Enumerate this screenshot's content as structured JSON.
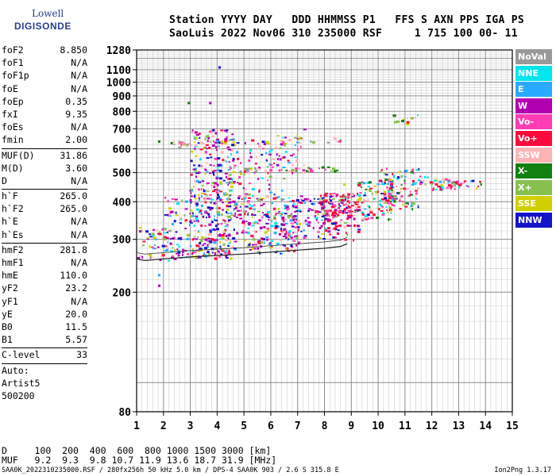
{
  "logo": {
    "line1": "Lowell",
    "line2": "DIGISONDE"
  },
  "header": {
    "line1": "Station YYYY DAY   DDD HHMMSS P1   FFS S AXN PPS IGA PS",
    "line2": "SaoLuis 2022 Nov06 310 235000 RSF     1 715 100 00- 11"
  },
  "params": [
    {
      "type": "row",
      "name": "foF2",
      "value": "8.850"
    },
    {
      "type": "row",
      "name": "foF1",
      "value": "N/A"
    },
    {
      "type": "row",
      "name": "foF1p",
      "value": "N/A"
    },
    {
      "type": "row",
      "name": "foE",
      "value": "N/A"
    },
    {
      "type": "row",
      "name": "foEp",
      "value": "0.35"
    },
    {
      "type": "row",
      "name": "fxI",
      "value": "9.35"
    },
    {
      "type": "row",
      "name": "foEs",
      "value": "N/A"
    },
    {
      "type": "row",
      "name": "fmin",
      "value": "2.00"
    },
    {
      "type": "sep"
    },
    {
      "type": "row",
      "name": "MUF(D)",
      "value": "31.86"
    },
    {
      "type": "row",
      "name": "M(D)",
      "value": "3.60"
    },
    {
      "type": "row",
      "name": "D",
      "value": "N/A"
    },
    {
      "type": "sep"
    },
    {
      "type": "row",
      "name": "h`F",
      "value": "265.0"
    },
    {
      "type": "row",
      "name": "h`F2",
      "value": "265.0"
    },
    {
      "type": "row",
      "name": "h`E",
      "value": "N/A"
    },
    {
      "type": "row",
      "name": "h`Es",
      "value": "N/A"
    },
    {
      "type": "sep"
    },
    {
      "type": "row",
      "name": "hmF2",
      "value": "281.8"
    },
    {
      "type": "row",
      "name": "hmF1",
      "value": "N/A"
    },
    {
      "type": "row",
      "name": "hmE",
      "value": "110.0"
    },
    {
      "type": "row",
      "name": "yF2",
      "value": "23.2"
    },
    {
      "type": "row",
      "name": "yF1",
      "value": "N/A"
    },
    {
      "type": "row",
      "name": "yE",
      "value": "20.0"
    },
    {
      "type": "row",
      "name": "B0",
      "value": "11.5"
    },
    {
      "type": "row",
      "name": "B1",
      "value": "5.57"
    },
    {
      "type": "sep"
    },
    {
      "type": "row",
      "name": "C-level",
      "value": "33"
    },
    {
      "type": "sep"
    },
    {
      "type": "text",
      "name": "Auto:"
    },
    {
      "type": "text",
      "name": "Artist5"
    },
    {
      "type": "text",
      "name": "500200"
    }
  ],
  "legend": [
    {
      "label": "NoVal",
      "color": "#999999"
    },
    {
      "label": "NNE",
      "color": "#00e5ee"
    },
    {
      "label": "E",
      "color": "#29aaff"
    },
    {
      "label": "W",
      "color": "#b000b0"
    },
    {
      "label": "Vo-",
      "color": "#ff3cb4"
    },
    {
      "label": "Vo+",
      "color": "#ff0a3c"
    },
    {
      "label": "SSW",
      "color": "#ffb4b4"
    },
    {
      "label": "X-",
      "color": "#108010"
    },
    {
      "label": "X+",
      "color": "#88c050"
    },
    {
      "label": "SSE",
      "color": "#d0d000"
    },
    {
      "label": "NNW",
      "color": "#1414c8"
    }
  ],
  "muf_table": {
    "row1": "D     100  200  400  600  800 1000 1500 3000 [km]",
    "row2": "MUF   9.2  9.3  9.8 10.7 11.9 13.6 18.7 31.9 [MHz]"
  },
  "footer": {
    "left": "SAA0K_2022310235000.RSF / 280fx256h 50 kHz 5.0 km / DPS-4 SAA0K 903 / 2.6 S 315.8 E",
    "right": "Ion2Png 1.3.17"
  },
  "chart_data": {
    "type": "scatter",
    "xlim": [
      1,
      15
    ],
    "ylim": [
      80,
      1280
    ],
    "yscale": "log",
    "x_ticks": [
      1,
      2,
      3,
      4,
      5,
      6,
      7,
      8,
      9,
      10,
      11,
      12,
      13,
      14,
      15
    ],
    "y_ticks": [
      80,
      200,
      300,
      400,
      500,
      600,
      700,
      800,
      900,
      1000,
      1100,
      1280
    ],
    "grid": true,
    "clusters": [
      {
        "f": [
          1.0,
          2.9
        ],
        "h": [
          255,
          330
        ],
        "n": 90,
        "mix": "main"
      },
      {
        "f": [
          2.0,
          3.0
        ],
        "h": [
          340,
          420
        ],
        "n": 25,
        "mix": "main"
      },
      {
        "f": [
          2.95,
          4.5
        ],
        "h": [
          260,
          450
        ],
        "n": 260,
        "mix": "main"
      },
      {
        "f": [
          3.0,
          4.6
        ],
        "h": [
          450,
          700
        ],
        "n": 160,
        "mix": "main"
      },
      {
        "f": [
          4.5,
          7.0
        ],
        "h": [
          270,
          420
        ],
        "n": 230,
        "mix": "main"
      },
      {
        "f": [
          4.6,
          6.5
        ],
        "h": [
          420,
          650
        ],
        "n": 70,
        "mix": "main"
      },
      {
        "f": [
          5.8,
          7.4
        ],
        "h": [
          500,
          700
        ],
        "n": 40,
        "mix": "main"
      },
      {
        "f": [
          6.0,
          8.0
        ],
        "h": [
          300,
          420
        ],
        "n": 110,
        "mix": "main"
      },
      {
        "f": [
          7.8,
          9.2
        ],
        "h": [
          360,
          430
        ],
        "n": 120,
        "mix": "red"
      },
      {
        "f": [
          8.0,
          9.5
        ],
        "h": [
          300,
          380
        ],
        "n": 60,
        "mix": "red"
      },
      {
        "f": [
          9.2,
          10.5
        ],
        "h": [
          350,
          470
        ],
        "n": 90,
        "mix": "late"
      },
      {
        "f": [
          10.0,
          11.5
        ],
        "h": [
          380,
          520
        ],
        "n": 130,
        "mix": "late"
      },
      {
        "f": [
          11.5,
          12.5
        ],
        "h": [
          440,
          490
        ],
        "n": 30,
        "mix": "late"
      },
      {
        "f": [
          12.5,
          13.9
        ],
        "h": [
          445,
          475
        ],
        "n": 35,
        "mix": "late"
      },
      {
        "f": [
          10.3,
          11.6
        ],
        "h": [
          730,
          790
        ],
        "n": 12,
        "mix": "late"
      },
      {
        "f": [
          2.2,
          3.2
        ],
        "h": [
          610,
          640
        ],
        "n": 20,
        "mix": "side"
      },
      {
        "f": [
          4.4,
          8.5
        ],
        "h": [
          505,
          525
        ],
        "n": 40,
        "mix": "side"
      },
      {
        "f": [
          6.5,
          8.6
        ],
        "h": [
          630,
          660
        ],
        "n": 12,
        "mix": "side"
      }
    ],
    "trace": [
      {
        "f": 1.0,
        "h": 258
      },
      {
        "f": 1.3,
        "h": 255
      },
      {
        "f": 2.0,
        "h": 258
      },
      {
        "f": 3.0,
        "h": 262
      },
      {
        "f": 4.0,
        "h": 265
      },
      {
        "f": 5.0,
        "h": 268
      },
      {
        "f": 6.0,
        "h": 272
      },
      {
        "f": 7.0,
        "h": 276
      },
      {
        "f": 8.0,
        "h": 280
      },
      {
        "f": 8.6,
        "h": 284
      },
      {
        "f": 8.85,
        "h": 290
      }
    ]
  }
}
